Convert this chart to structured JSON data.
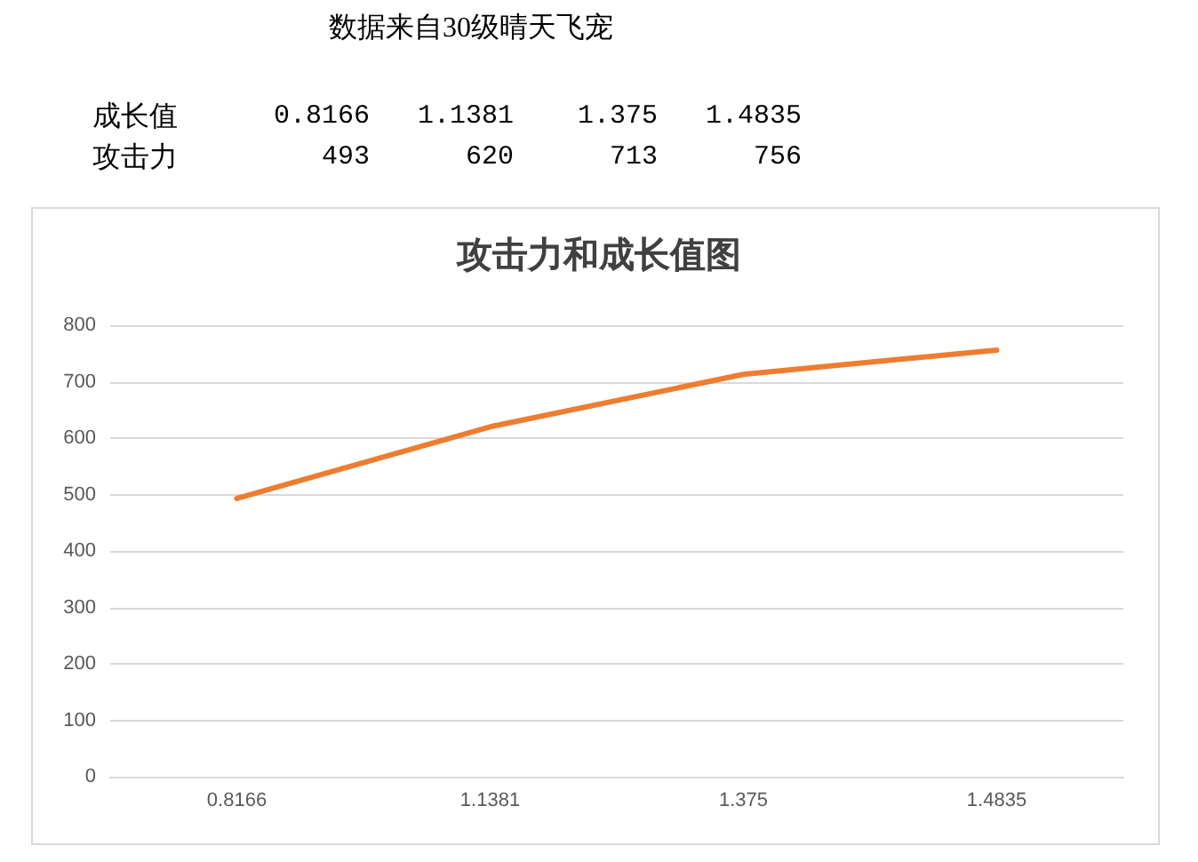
{
  "chart_data": {
    "type": "line",
    "title": "攻击力和成长值图",
    "annotations": [
      "数据来自30级晴天飞宠",
      "成长值",
      "攻击力",
      "493",
      "620",
      "713",
      "756"
    ],
    "categories": [
      "0.8166",
      "1.1381",
      "1.375",
      "1.4835"
    ],
    "series": [
      {
        "color": "#ed7d31",
        "values": [
          493,
          620,
          713,
          756
        ]
      }
    ],
    "ylim": [
      0,
      800
    ],
    "yticks": [
      0,
      100,
      200,
      300,
      400,
      500,
      600,
      700,
      800
    ],
    "grid": "y",
    "marker": "none",
    "line_style": "solid"
  }
}
